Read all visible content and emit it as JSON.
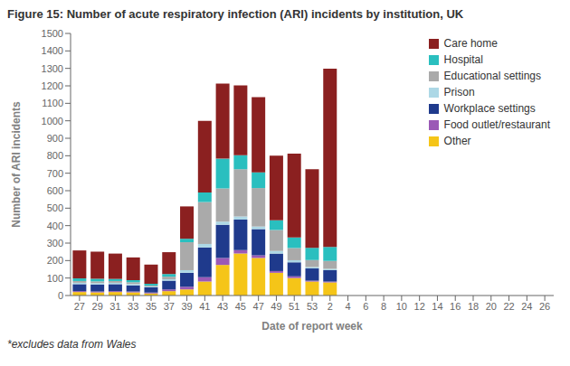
{
  "chart_data": {
    "type": "bar",
    "stacked": true,
    "grid": false,
    "legend": "upper right",
    "title": "Figure 15: Number of acute respiratory infection (ARI) incidents by institution, UK",
    "xlabel": "Date of report week",
    "ylabel": "Number of ARI incidents",
    "footnote": "*excludes data from Wales",
    "categories": [
      "27",
      "29",
      "31",
      "33",
      "35",
      "37",
      "39",
      "41",
      "43",
      "45",
      "47",
      "49",
      "51",
      "53",
      "2",
      "4",
      "6",
      "8",
      "10",
      "12",
      "14",
      "16",
      "18",
      "20",
      "22",
      "24",
      "26"
    ],
    "series": [
      {
        "name": "Other",
        "color": "#F5C518",
        "values": [
          20,
          18,
          20,
          18,
          12,
          25,
          35,
          80,
          175,
          240,
          215,
          130,
          100,
          80,
          75,
          0,
          0,
          0,
          0,
          0,
          0,
          0,
          0,
          0,
          0,
          0,
          0
        ]
      },
      {
        "name": "Food outlet/restaurant",
        "color": "#9B59B6",
        "values": [
          5,
          5,
          5,
          5,
          5,
          10,
          15,
          25,
          40,
          20,
          15,
          10,
          10,
          5,
          5,
          0,
          0,
          0,
          0,
          0,
          0,
          0,
          0,
          0,
          0,
          0,
          0
        ]
      },
      {
        "name": "Workplace settings",
        "color": "#1F3A8C",
        "values": [
          40,
          40,
          40,
          35,
          30,
          50,
          80,
          170,
          190,
          175,
          150,
          100,
          80,
          70,
          65,
          0,
          0,
          0,
          0,
          0,
          0,
          0,
          0,
          0,
          0,
          0,
          0
        ]
      },
      {
        "name": "Prison",
        "color": "#ADD8E6",
        "values": [
          8,
          8,
          8,
          8,
          5,
          8,
          15,
          20,
          18,
          18,
          15,
          15,
          12,
          8,
          8,
          0,
          0,
          0,
          0,
          0,
          0,
          0,
          0,
          0,
          0,
          0,
          0
        ]
      },
      {
        "name": "Educational settings",
        "color": "#AAAAAA",
        "values": [
          10,
          10,
          10,
          10,
          5,
          15,
          160,
          240,
          190,
          270,
          220,
          120,
          70,
          40,
          45,
          0,
          0,
          0,
          0,
          0,
          0,
          0,
          0,
          0,
          0,
          0,
          0
        ]
      },
      {
        "name": "Hospital",
        "color": "#2ABFBF",
        "values": [
          15,
          15,
          12,
          12,
          10,
          15,
          20,
          55,
          170,
          80,
          90,
          55,
          60,
          70,
          80,
          0,
          0,
          0,
          0,
          0,
          0,
          0,
          0,
          0,
          0,
          0,
          0
        ]
      },
      {
        "name": "Care home",
        "color": "#8B2020",
        "values": [
          160,
          155,
          145,
          130,
          110,
          125,
          185,
          410,
          430,
          400,
          430,
          370,
          480,
          450,
          1020,
          0,
          0,
          0,
          0,
          0,
          0,
          0,
          0,
          0,
          0,
          0,
          0
        ]
      }
    ],
    "ylim": [
      0,
      1500
    ],
    "yticks": [
      0,
      100,
      200,
      300,
      400,
      500,
      600,
      700,
      800,
      900,
      1000,
      1100,
      1200,
      1300,
      1400,
      1500
    ]
  }
}
